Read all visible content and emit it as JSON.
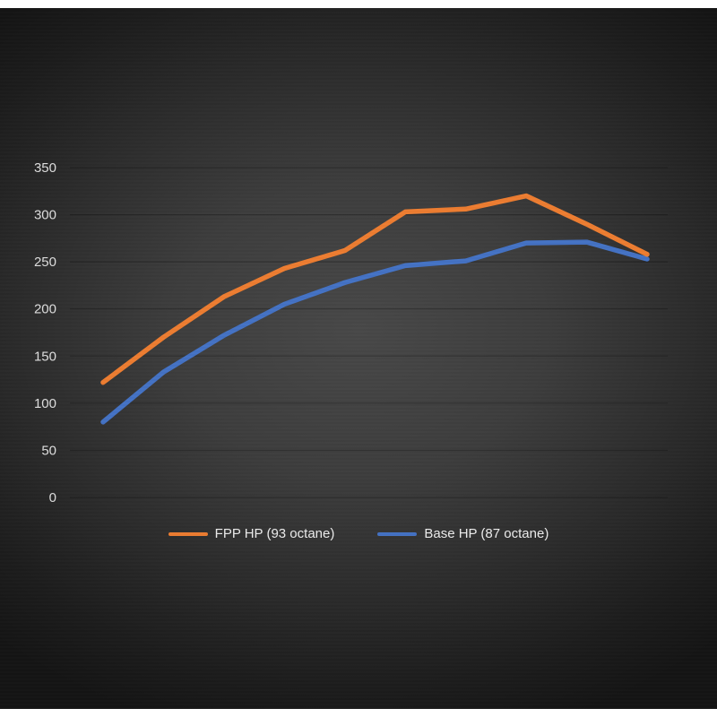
{
  "chart_data": {
    "type": "line",
    "title": "",
    "xlabel": "",
    "ylabel": "",
    "x": [
      1,
      2,
      3,
      4,
      5,
      6,
      7,
      8,
      9,
      10
    ],
    "x_axis_labels_visible": false,
    "ylim": [
      0,
      350
    ],
    "yticks": [
      0,
      50,
      100,
      150,
      200,
      250,
      300,
      350
    ],
    "grid": true,
    "legend_position": "bottom",
    "series": [
      {
        "name": "FPP HP (93 octane)",
        "color": "#ED7D31",
        "values": [
          122,
          170,
          213,
          243,
          262,
          303,
          306,
          320,
          290,
          258
        ]
      },
      {
        "name": "Base HP (87 octane)",
        "color": "#4472C4",
        "values": [
          80,
          133,
          172,
          205,
          228,
          246,
          251,
          270,
          271,
          253
        ]
      }
    ],
    "colors": {
      "axis_text": "#DEDEDE",
      "legend_text": "#ECECEC",
      "background_center": "#484848",
      "background_edge": "#141414"
    }
  }
}
